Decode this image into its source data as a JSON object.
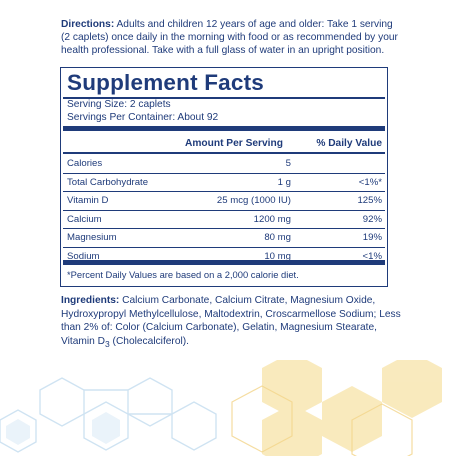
{
  "directions": {
    "label": "Directions:",
    "text": " Adults and children 12 years of age and older: Take 1 serving (2 caplets) once daily in the morning with food or as recommended by your health professional. Take with a full glass of water in an upright position."
  },
  "facts": {
    "title": "Supplement Facts",
    "serving_size": "Serving Size: 2 caplets",
    "servings_per_container": "Servings Per Container: About 92",
    "header_amount": "Amount Per Serving",
    "header_dv": "% Daily Value",
    "rows": [
      {
        "name": "Calories",
        "amount": "5",
        "dv": ""
      },
      {
        "name": "Total Carbohydrate",
        "amount": "1 g",
        "dv": "<1%*"
      },
      {
        "name": "Vitamin D",
        "amount": "25 mcg (1000 IU)",
        "dv": "125%"
      },
      {
        "name": "Calcium",
        "amount": "1200 mg",
        "dv": "92%"
      },
      {
        "name": "Magnesium",
        "amount": "80 mg",
        "dv": "19%"
      },
      {
        "name": "Sodium",
        "amount": "10 mg",
        "dv": "<1%"
      }
    ],
    "footnote": "*Percent Daily Values are based on a 2,000 calorie diet."
  },
  "ingredients": {
    "label": "Ingredients:",
    "text_before_sub": " Calcium Carbonate, Calcium Citrate, Magnesium Oxide, Hydroxypropyl Methylcellulose, Maltodextrin, Croscarmellose Sodium; Less than 2% of: Color (Calcium Carbonate), Gelatin, Magnesium Stearate, Vitamin D",
    "subscript": "3",
    "text_after_sub": " (Cholecalciferol)."
  },
  "colors": {
    "text": "#1f3b7a",
    "decor_blue": "#cfe3f2",
    "decor_yellow": "#f7e3a8"
  }
}
